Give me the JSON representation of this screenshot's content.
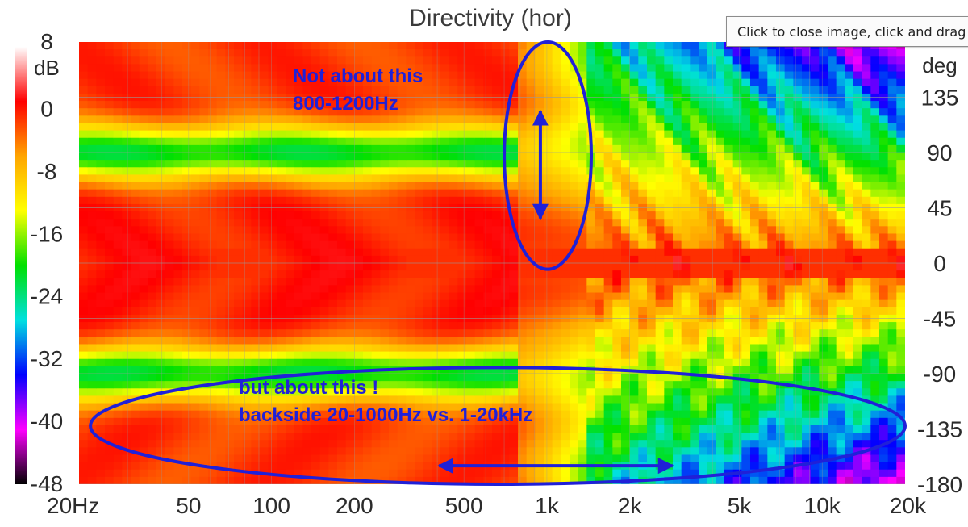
{
  "chart_data": {
    "type": "heatmap",
    "title": "Directivity (hor)",
    "x_axis": {
      "scale": "log",
      "range": [
        20,
        20000
      ],
      "tick_values": [
        20,
        50,
        100,
        200,
        500,
        1000,
        2000,
        5000,
        10000,
        20000
      ],
      "tick_labels": [
        "20Hz",
        "50",
        "100",
        "200",
        "500",
        "1k",
        "2k",
        "5k",
        "10k",
        "20k"
      ]
    },
    "y_axis": {
      "unit_label": "deg",
      "range": [
        -180,
        180
      ],
      "tick_values": [
        135,
        90,
        45,
        0,
        -45,
        -90,
        -135,
        -180
      ],
      "tick_labels": [
        "135",
        "90",
        "45",
        "0",
        "-45",
        "-90",
        "-135",
        "-180"
      ]
    },
    "colorbar": {
      "unit_label": "dB",
      "range": [
        -48,
        8
      ],
      "tick_values": [
        8,
        0,
        -8,
        -16,
        -24,
        -32,
        -40,
        -48
      ],
      "tick_labels": [
        "8",
        "0",
        "-8",
        "-16",
        "-24",
        "-32",
        "-40",
        "-48"
      ],
      "colors": [
        "#ffffff",
        "#ff0000",
        "#ffa500",
        "#ffff00",
        "#00e000",
        "#00e0e0",
        "#0000ff",
        "#ff00ff",
        "#000000"
      ]
    },
    "grid": true,
    "annotations": [
      {
        "lines": [
          "Not about this",
          "800-1200Hz"
        ],
        "ellipse": {
          "freq_range": [
            700,
            1450
          ],
          "deg_range": [
            -5,
            180
          ]
        },
        "arrow": {
          "direction": "vertical",
          "freq": 1000,
          "deg_range": [
            125,
            35
          ]
        }
      },
      {
        "lines": [
          "but about this !",
          "backside 20-1000Hz vs. 1-20kHz"
        ],
        "ellipse": {
          "freq_range": [
            22,
            20000
          ],
          "deg_range": [
            -180,
            -85
          ]
        },
        "arrow": {
          "direction": "horizontal",
          "deg": -165,
          "freq_range": [
            400,
            2900
          ]
        }
      }
    ],
    "annotation_color": "#2020d8"
  },
  "tooltip": {
    "text": "Click to close image, click and drag to move. Use mouse wheel to zoom."
  }
}
